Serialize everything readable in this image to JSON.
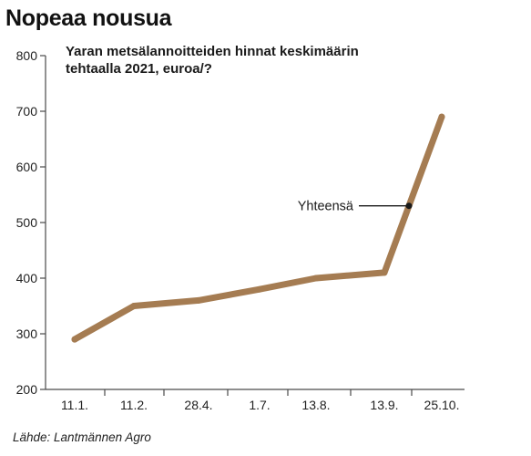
{
  "headline": "Nopeaa nousua",
  "source": "Lähde: Lantmännen Agro",
  "chart_data": {
    "type": "line",
    "title": "",
    "subtitle_lines": [
      "Yaran metsälannoitteiden hinnat keskimäärin",
      "tehtaalla 2021, euroa/?"
    ],
    "xlabel": "",
    "ylabel": "",
    "x_ticks": [
      "11.1.",
      "11.2.",
      "28.4.",
      "1.7.",
      "13.8.",
      "13.9.",
      "25.10."
    ],
    "ylim": [
      200,
      800
    ],
    "y_ticks": [
      200,
      300,
      400,
      500,
      600,
      700,
      800
    ],
    "grid": false,
    "series": [
      {
        "color": "#a57c52",
        "points": [
          {
            "x": "11.1.",
            "y": 290
          },
          {
            "x": "11.2.",
            "y": 350
          },
          {
            "x": "28.4.",
            "y": 360
          },
          {
            "x": "1.7.",
            "y": 380
          },
          {
            "x": "13.8.",
            "y": 400
          },
          {
            "x": "13.9.",
            "y": 410
          },
          {
            "x": "25.10.",
            "y": 690
          }
        ]
      }
    ],
    "annotation": {
      "label": "Yhteensä",
      "y": 530
    }
  }
}
